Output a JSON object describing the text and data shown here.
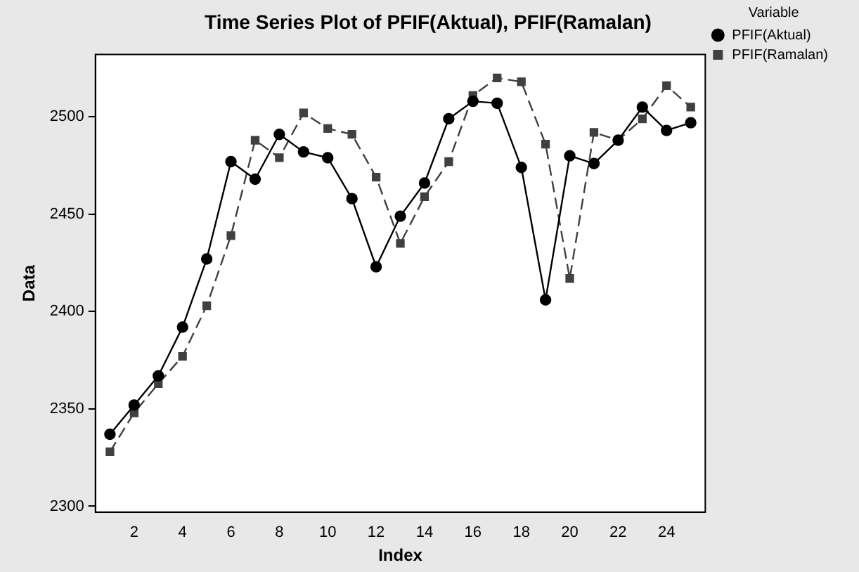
{
  "chart_data": {
    "type": "line",
    "title": "Time Series Plot of PFIF(Aktual), PFIF(Ramalan)",
    "xlabel": "Index",
    "ylabel": "Data",
    "legend_title": "Variable",
    "legend": "top right",
    "grid": false,
    "x": [
      1,
      2,
      3,
      4,
      5,
      6,
      7,
      8,
      9,
      10,
      11,
      12,
      13,
      14,
      15,
      16,
      17,
      18,
      19,
      20,
      21,
      22,
      23,
      24,
      25
    ],
    "xlim": [
      0.4,
      25.6
    ],
    "xticks": [
      2,
      4,
      6,
      8,
      10,
      12,
      14,
      16,
      18,
      20,
      22,
      24
    ],
    "ylim": [
      2297,
      2532
    ],
    "yticks": [
      2300,
      2350,
      2400,
      2450,
      2500
    ],
    "series": [
      {
        "name": "PFIF(Aktual)",
        "color": "#000000",
        "marker": "circle",
        "line_style": "solid",
        "values": [
          2337,
          2352,
          2367,
          2392,
          2427,
          2477,
          2468,
          2491,
          2482,
          2479,
          2458,
          2423,
          2449,
          2466,
          2499,
          2508,
          2507,
          2474,
          2406,
          2480,
          2476,
          2488,
          2505,
          2493,
          2497
        ]
      },
      {
        "name": "PFIF(Ramalan)",
        "color": "#404040",
        "marker": "square",
        "line_style": "dashed",
        "values": [
          2328,
          2348,
          2363,
          2377,
          2403,
          2439,
          2488,
          2479,
          2502,
          2494,
          2491,
          2469,
          2435,
          2459,
          2477,
          2511,
          2520,
          2518,
          2486,
          2417,
          2492,
          2488,
          2499,
          2516,
          2505
        ]
      }
    ]
  }
}
